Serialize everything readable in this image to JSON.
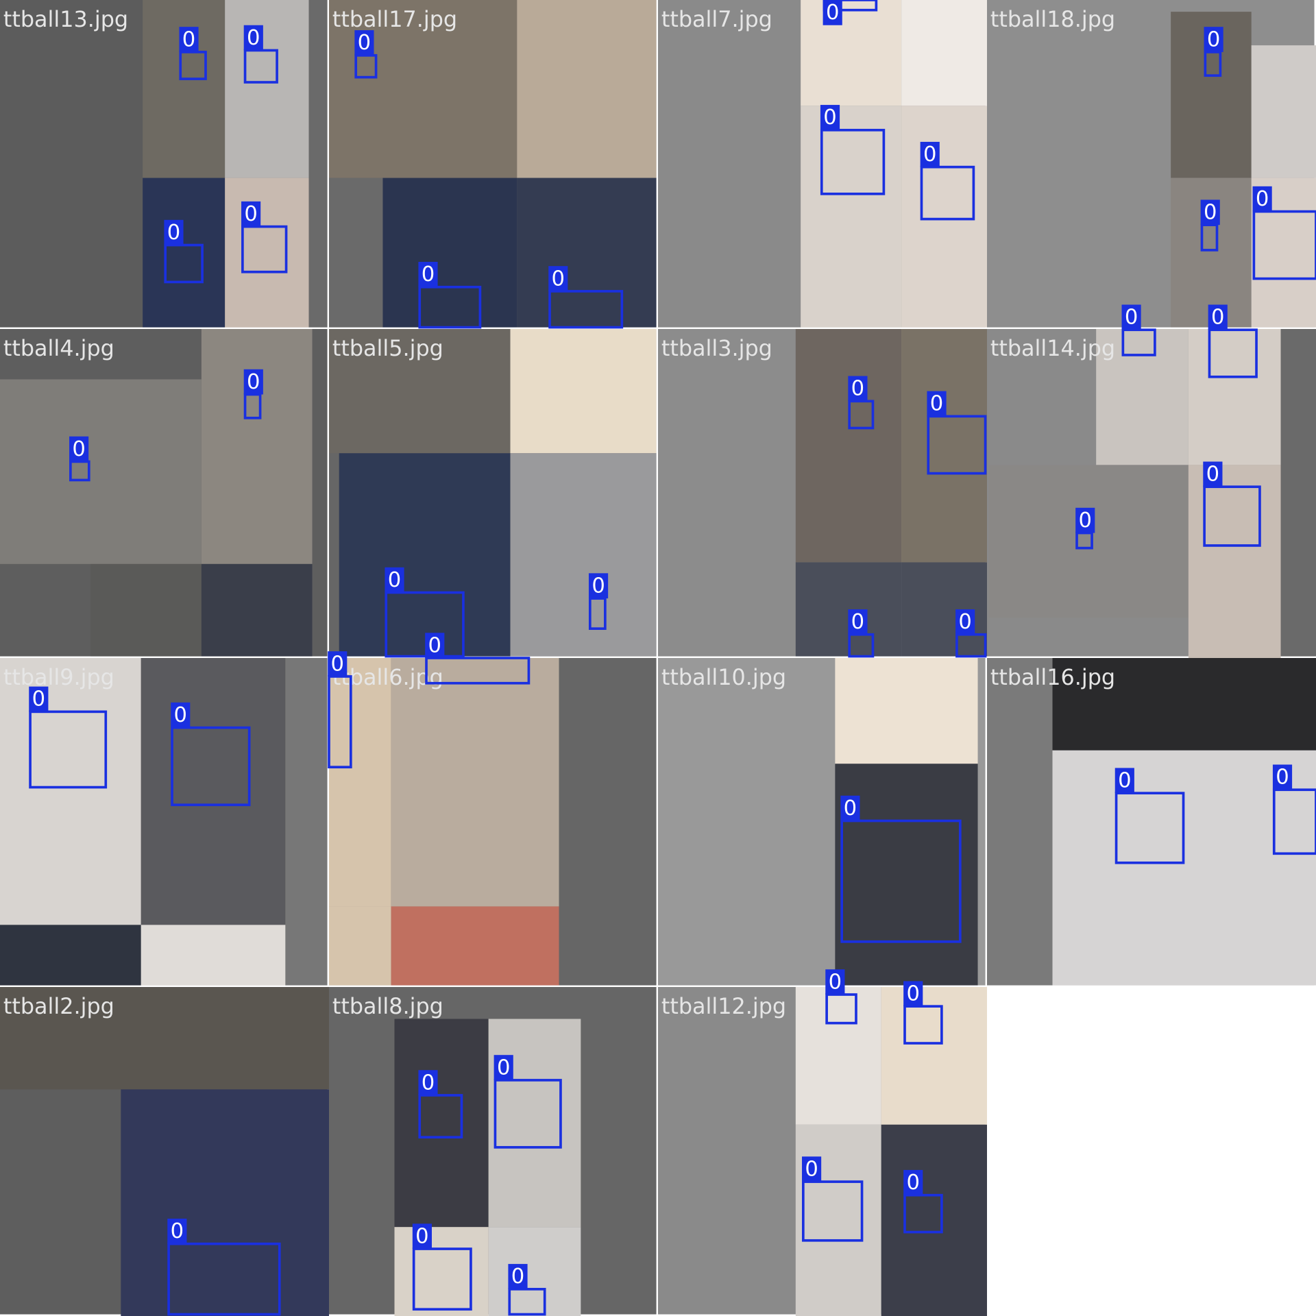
{
  "tiles": [
    {
      "title": "ttball13.jpg",
      "boxes": [
        "0",
        "0",
        "0",
        "0"
      ]
    },
    {
      "title": "ttball17.jpg",
      "boxes": [
        "0",
        "0",
        "0"
      ]
    },
    {
      "title": "ttball7.jpg",
      "boxes": [
        "0",
        "0",
        "0"
      ]
    },
    {
      "title": "ttball18.jpg",
      "boxes": [
        "0",
        "0",
        "0"
      ]
    },
    {
      "title": "ttball4.jpg",
      "boxes": [
        "0",
        "0"
      ]
    },
    {
      "title": "ttball5.jpg",
      "boxes": [
        "0",
        "0"
      ]
    },
    {
      "title": "ttball3.jpg",
      "boxes": [
        "0",
        "0",
        "0",
        "0"
      ]
    },
    {
      "title": "ttball14.jpg",
      "boxes": [
        "0",
        "0",
        "0",
        "0"
      ]
    },
    {
      "title": "ttball9.jpg",
      "boxes": [
        "0",
        "0"
      ]
    },
    {
      "title": "ttball6.jpg",
      "boxes": [
        "0",
        "0"
      ]
    },
    {
      "title": "ttball10.jpg",
      "boxes": [
        "0"
      ]
    },
    {
      "title": "ttball16.jpg",
      "boxes": [
        "0",
        "0"
      ]
    },
    {
      "title": "ttball2.jpg",
      "boxes": [
        "0"
      ]
    },
    {
      "title": "ttball8.jpg",
      "boxes": [
        "0",
        "0",
        "0",
        "0"
      ]
    },
    {
      "title": "ttball12.jpg",
      "boxes": [
        "0",
        "0",
        "0",
        "0"
      ]
    }
  ]
}
